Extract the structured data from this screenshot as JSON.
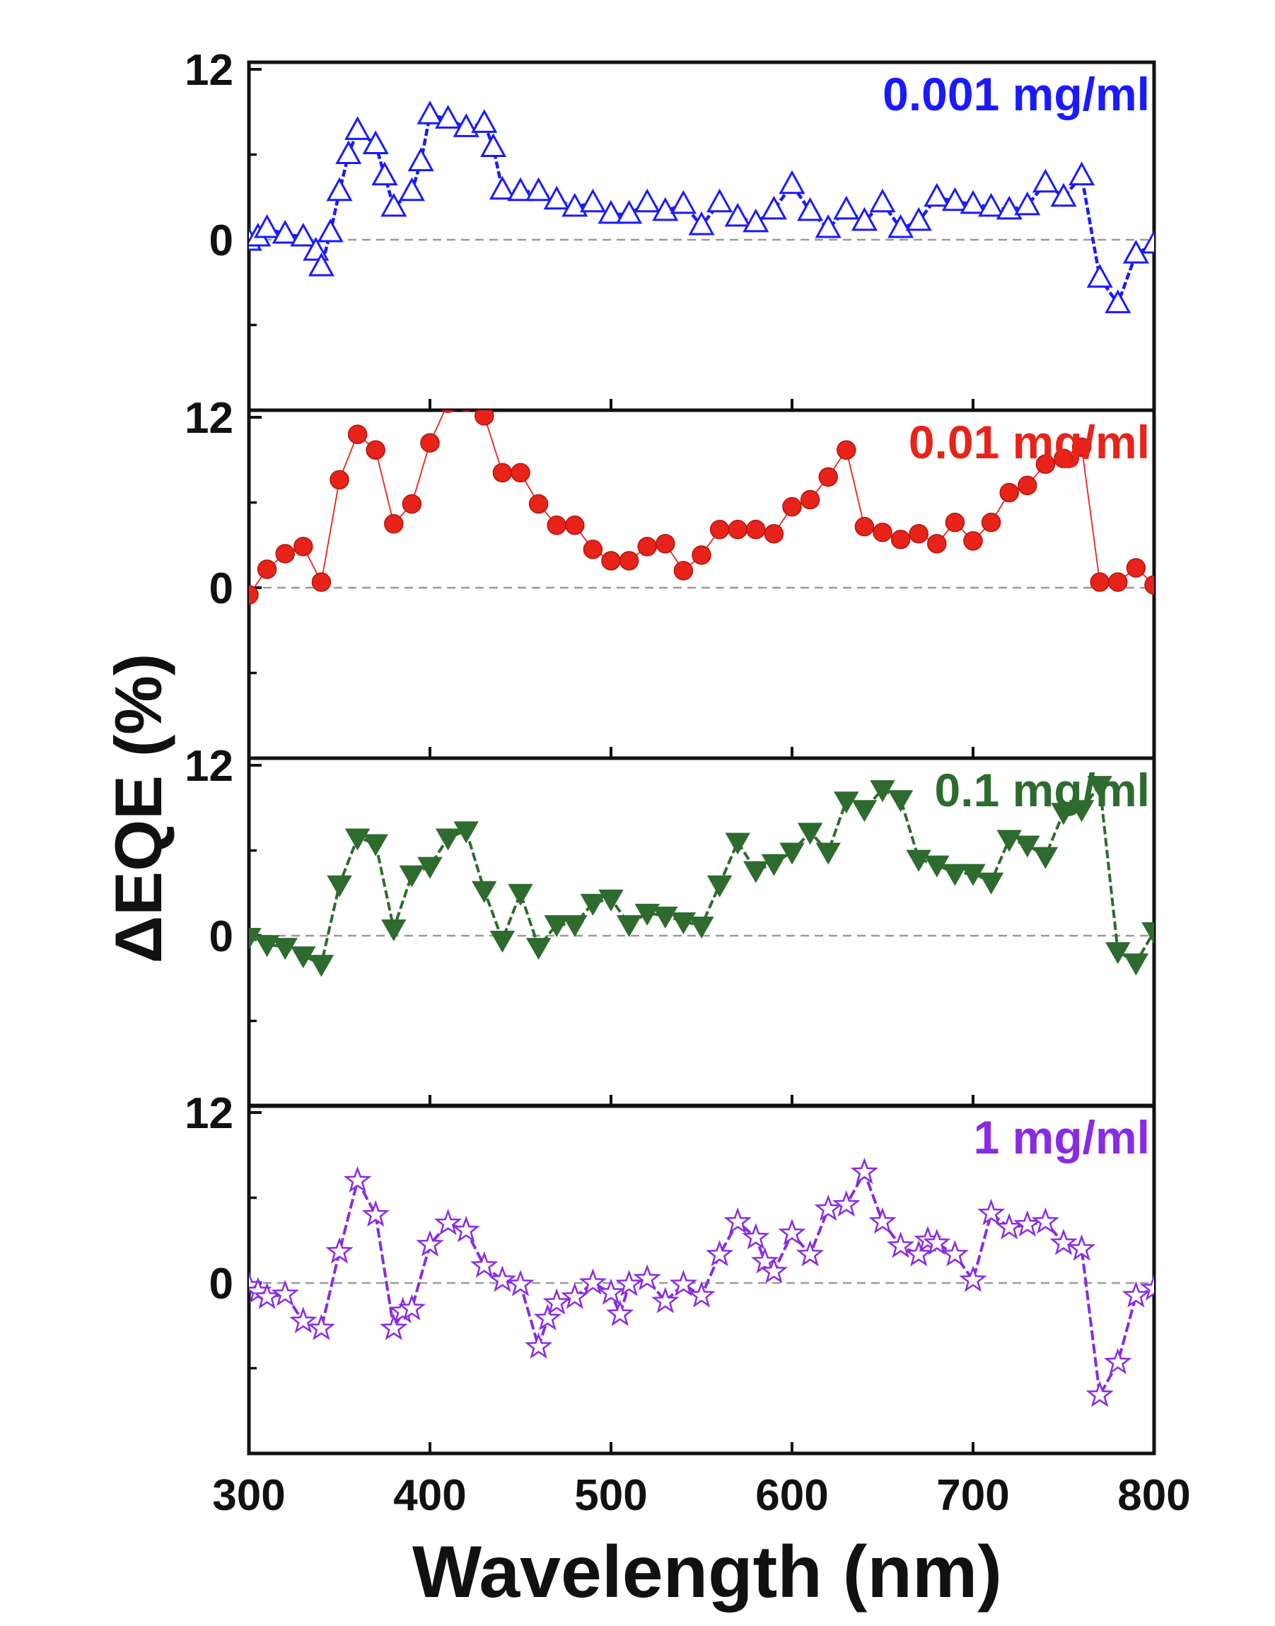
{
  "chart_data": {
    "type": "line",
    "layout": "stacked-panels",
    "xlabel": "Wavelength (nm)",
    "ylabel": "ΔEQE (%)",
    "xlim": [
      300,
      800
    ],
    "ylim": [
      -12,
      12.5
    ],
    "x_ticks": [
      300,
      400,
      500,
      600,
      700,
      800
    ],
    "y_ticks": [
      0,
      12
    ],
    "zero_reference_line": true,
    "panels": [
      {
        "series_name": "0.001 mg/ml",
        "color": "#1a1aff",
        "marker": "triangle-up-open",
        "x": [
          300,
          305,
          310,
          320,
          330,
          337,
          340,
          345,
          350,
          355,
          360,
          370,
          375,
          380,
          390,
          395,
          400,
          410,
          420,
          430,
          435,
          440,
          450,
          460,
          470,
          480,
          490,
          500,
          510,
          520,
          530,
          540,
          550,
          560,
          570,
          580,
          590,
          600,
          610,
          620,
          630,
          640,
          650,
          660,
          670,
          680,
          690,
          700,
          710,
          720,
          730,
          740,
          750,
          760,
          770,
          780,
          790,
          800
        ],
        "y": [
          -0.1,
          0.2,
          0.8,
          0.4,
          0.2,
          -0.8,
          -1.9,
          0.5,
          3.4,
          6.0,
          7.7,
          6.7,
          4.5,
          2.3,
          3.4,
          5.5,
          8.8,
          8.5,
          7.9,
          8.2,
          6.5,
          3.5,
          3.4,
          3.4,
          2.8,
          2.3,
          2.6,
          1.8,
          1.8,
          2.6,
          2.0,
          2.5,
          1.0,
          2.6,
          1.6,
          1.2,
          2.1,
          3.9,
          2.0,
          0.8,
          2.1,
          1.3,
          2.6,
          0.8,
          1.3,
          3.0,
          2.7,
          2.5,
          2.3,
          2.1,
          2.4,
          4.0,
          3.0,
          4.5,
          -2.7,
          -4.5,
          -1.0,
          -0.3
        ]
      },
      {
        "series_name": "0.01 mg/ml",
        "color": "#e8231a",
        "marker": "circle-filled",
        "x": [
          300,
          310,
          320,
          330,
          340,
          350,
          360,
          370,
          380,
          390,
          400,
          410,
          420,
          430,
          440,
          450,
          460,
          470,
          480,
          490,
          500,
          510,
          520,
          530,
          540,
          550,
          560,
          570,
          580,
          590,
          600,
          610,
          620,
          630,
          640,
          650,
          660,
          670,
          680,
          690,
          700,
          710,
          720,
          730,
          740,
          750,
          760,
          770,
          780,
          790,
          800
        ],
        "y": [
          -0.5,
          1.3,
          2.4,
          2.9,
          0.4,
          7.6,
          10.8,
          9.7,
          4.5,
          5.9,
          10.2,
          13.0,
          13.1,
          12.1,
          8.1,
          8.1,
          5.9,
          4.4,
          4.4,
          2.7,
          1.9,
          1.9,
          2.9,
          3.1,
          1.2,
          2.3,
          4.1,
          4.1,
          4.1,
          3.8,
          5.7,
          6.2,
          7.8,
          9.7,
          4.3,
          3.9,
          3.4,
          3.8,
          3.1,
          4.6,
          3.3,
          4.6,
          6.7,
          7.2,
          8.7,
          9.1,
          9.9,
          0.4,
          0.4,
          1.4,
          0.2
        ]
      },
      {
        "series_name": "0.1 mg/ml",
        "color": "#2e6b2e",
        "marker": "triangle-down-filled",
        "x": [
          300,
          310,
          320,
          330,
          340,
          350,
          360,
          370,
          380,
          390,
          400,
          410,
          420,
          430,
          440,
          450,
          460,
          470,
          480,
          490,
          500,
          510,
          520,
          530,
          540,
          550,
          560,
          570,
          580,
          590,
          600,
          610,
          620,
          630,
          640,
          650,
          660,
          670,
          680,
          690,
          700,
          710,
          720,
          730,
          740,
          750,
          760,
          770,
          780,
          790,
          800
        ],
        "y": [
          -0.1,
          -0.6,
          -0.8,
          -1.4,
          -2.0,
          3.6,
          6.9,
          6.5,
          0.5,
          4.3,
          4.9,
          6.9,
          7.4,
          3.2,
          -0.3,
          3.0,
          -0.8,
          0.8,
          0.8,
          2.3,
          2.6,
          0.8,
          1.6,
          1.4,
          1.0,
          0.7,
          3.6,
          6.6,
          4.6,
          5.1,
          5.9,
          7.3,
          5.9,
          9.5,
          8.9,
          10.3,
          9.6,
          5.4,
          5.0,
          4.4,
          4.4,
          3.8,
          6.8,
          6.4,
          5.6,
          8.7,
          8.9,
          10.6,
          -1.1,
          -1.9,
          0.3
        ]
      },
      {
        "series_name": "1 mg/ml",
        "color": "#8a2be2",
        "marker": "star-open",
        "x": [
          300,
          305,
          310,
          320,
          330,
          340,
          350,
          360,
          370,
          380,
          385,
          390,
          400,
          410,
          420,
          430,
          440,
          450,
          460,
          465,
          470,
          480,
          490,
          500,
          505,
          510,
          520,
          530,
          540,
          550,
          560,
          570,
          580,
          585,
          590,
          600,
          610,
          620,
          630,
          640,
          650,
          660,
          670,
          675,
          680,
          690,
          700,
          710,
          720,
          730,
          740,
          750,
          760,
          770,
          780,
          790,
          800
        ],
        "y": [
          -0.2,
          -0.6,
          -1.0,
          -0.8,
          -2.7,
          -3.2,
          2.2,
          7.2,
          4.8,
          -3.2,
          -2.0,
          -1.8,
          2.7,
          4.2,
          3.7,
          1.2,
          0.2,
          -0.1,
          -4.5,
          -2.5,
          -1.4,
          -1.0,
          0.0,
          -0.7,
          -2.2,
          -0.1,
          0.3,
          -1.3,
          -0.1,
          -0.9,
          2.0,
          4.3,
          3.2,
          1.5,
          0.8,
          3.5,
          2.0,
          5.2,
          5.5,
          7.8,
          4.3,
          2.6,
          2.0,
          3.0,
          2.8,
          2.0,
          0.2,
          4.9,
          3.9,
          4.1,
          4.3,
          2.8,
          2.4,
          -7.9,
          -5.6,
          -0.9,
          -0.4
        ]
      }
    ]
  }
}
